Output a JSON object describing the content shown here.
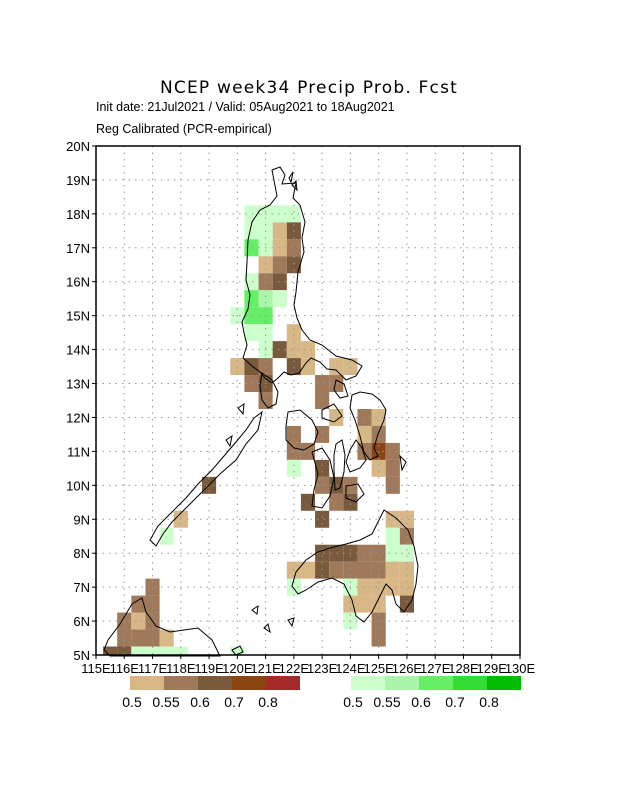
{
  "title": "NCEP week34 Precip Prob. Fcst",
  "subtitle1": "Init date: 21Jul2021 / Valid: 05Aug2021 to 18Aug2021",
  "subtitle2": "Reg Calibrated (PCR-empirical)",
  "lat_labels": [
    "20N",
    "19N",
    "18N",
    "17N",
    "16N",
    "15N",
    "14N",
    "13N",
    "12N",
    "11N",
    "10N",
    "9N",
    "8N",
    "7N",
    "6N",
    "5N"
  ],
  "lon_labels": [
    "115E",
    "116E",
    "117E",
    "118E",
    "119E",
    "120E",
    "121E",
    "122E",
    "123E",
    "124E",
    "125E",
    "126E",
    "127E",
    "128E",
    "129E",
    "130E"
  ],
  "colors": {
    "below": [
      "#d6b785",
      "#a0785a",
      "#7a5a3c",
      "#8b4513",
      "#a52a2a"
    ],
    "above": [
      "#ccffcc",
      "#aaf5aa",
      "#66ee66",
      "#33dd33",
      "#00bb00"
    ]
  },
  "legend": {
    "below_labels": [
      "0.5",
      "0.55",
      "0.6",
      "0.7",
      "0.8"
    ],
    "above_labels": [
      "0.5",
      "0.55",
      "0.6",
      "0.7",
      "0.8"
    ]
  },
  "chart_data": {
    "type": "heatmap",
    "grid_deg": 0.5,
    "lon_range": [
      115,
      130
    ],
    "lat_range": [
      5,
      20
    ],
    "grid": "dotted",
    "categories_note": "b = below-normal level index, a = above-normal level index",
    "cells": [
      {
        "lon": 120.5,
        "lat": 18.0,
        "a": 0
      },
      {
        "lon": 121.0,
        "lat": 18.0,
        "a": 0
      },
      {
        "lon": 121.5,
        "lat": 18.0,
        "a": 0
      },
      {
        "lon": 122.0,
        "lat": 18.0,
        "a": 0
      },
      {
        "lon": 120.5,
        "lat": 17.5,
        "a": 0
      },
      {
        "lon": 121.0,
        "lat": 17.5,
        "a": 0
      },
      {
        "lon": 121.5,
        "lat": 17.5,
        "b": 0
      },
      {
        "lon": 122.0,
        "lat": 17.5,
        "b": 2
      },
      {
        "lon": 120.5,
        "lat": 17.0,
        "a": 2
      },
      {
        "lon": 121.0,
        "lat": 17.0,
        "a": 0
      },
      {
        "lon": 121.5,
        "lat": 17.0,
        "b": 0
      },
      {
        "lon": 122.0,
        "lat": 17.0,
        "b": 1
      },
      {
        "lon": 121.0,
        "lat": 16.5,
        "b": 0
      },
      {
        "lon": 121.5,
        "lat": 16.5,
        "b": 1
      },
      {
        "lon": 122.0,
        "lat": 16.5,
        "b": 2
      },
      {
        "lon": 120.5,
        "lat": 16.0,
        "a": 0
      },
      {
        "lon": 121.0,
        "lat": 16.0,
        "b": 1
      },
      {
        "lon": 121.5,
        "lat": 16.0,
        "b": 2
      },
      {
        "lon": 120.5,
        "lat": 15.5,
        "a": 2
      },
      {
        "lon": 121.0,
        "lat": 15.5,
        "a": 1
      },
      {
        "lon": 121.5,
        "lat": 15.5,
        "a": 0
      },
      {
        "lon": 120.0,
        "lat": 15.0,
        "a": 0
      },
      {
        "lon": 120.5,
        "lat": 15.0,
        "a": 2
      },
      {
        "lon": 121.0,
        "lat": 15.0,
        "a": 2
      },
      {
        "lon": 120.5,
        "lat": 14.5,
        "a": 0
      },
      {
        "lon": 121.0,
        "lat": 14.5,
        "a": 0
      },
      {
        "lon": 122.0,
        "lat": 14.5,
        "b": 0
      },
      {
        "lon": 121.0,
        "lat": 14.0,
        "a": 0
      },
      {
        "lon": 121.5,
        "lat": 14.0,
        "b": 2
      },
      {
        "lon": 122.0,
        "lat": 14.0,
        "b": 0
      },
      {
        "lon": 122.5,
        "lat": 14.0,
        "b": 0
      },
      {
        "lon": 120.0,
        "lat": 13.5,
        "b": 0
      },
      {
        "lon": 120.5,
        "lat": 13.5,
        "b": 2
      },
      {
        "lon": 121.0,
        "lat": 13.5,
        "b": 1
      },
      {
        "lon": 122.0,
        "lat": 13.5,
        "b": 2
      },
      {
        "lon": 122.5,
        "lat": 13.5,
        "b": 0
      },
      {
        "lon": 123.5,
        "lat": 13.5,
        "b": 0
      },
      {
        "lon": 124.0,
        "lat": 13.5,
        "b": 0
      },
      {
        "lon": 120.5,
        "lat": 13.0,
        "b": 1
      },
      {
        "lon": 121.0,
        "lat": 13.0,
        "b": 2
      },
      {
        "lon": 123.0,
        "lat": 13.0,
        "b": 1
      },
      {
        "lon": 123.5,
        "lat": 13.0,
        "b": 1
      },
      {
        "lon": 121.0,
        "lat": 12.5,
        "b": 1
      },
      {
        "lon": 123.0,
        "lat": 12.5,
        "b": 1
      },
      {
        "lon": 123.5,
        "lat": 12.0,
        "b": 0
      },
      {
        "lon": 124.5,
        "lat": 12.0,
        "b": 1
      },
      {
        "lon": 125.0,
        "lat": 12.0,
        "b": 0
      },
      {
        "lon": 122.0,
        "lat": 11.5,
        "b": 1
      },
      {
        "lon": 123.0,
        "lat": 11.5,
        "b": 1
      },
      {
        "lon": 124.5,
        "lat": 11.5,
        "b": 0
      },
      {
        "lon": 125.0,
        "lat": 11.5,
        "b": 1
      },
      {
        "lon": 122.0,
        "lat": 11.0,
        "b": 1
      },
      {
        "lon": 122.5,
        "lat": 11.0,
        "b": 1
      },
      {
        "lon": 124.5,
        "lat": 11.0,
        "b": 1
      },
      {
        "lon": 125.0,
        "lat": 11.0,
        "b": 3
      },
      {
        "lon": 125.5,
        "lat": 11.0,
        "b": 1
      },
      {
        "lon": 122.0,
        "lat": 10.5,
        "a": 0
      },
      {
        "lon": 123.0,
        "lat": 10.5,
        "b": 2
      },
      {
        "lon": 125.0,
        "lat": 10.5,
        "b": 0
      },
      {
        "lon": 125.5,
        "lat": 10.5,
        "b": 1
      },
      {
        "lon": 123.0,
        "lat": 10.0,
        "b": 1
      },
      {
        "lon": 123.5,
        "lat": 10.0,
        "b": 2
      },
      {
        "lon": 124.0,
        "lat": 10.0,
        "b": 1
      },
      {
        "lon": 125.5,
        "lat": 10.0,
        "b": 1
      },
      {
        "lon": 122.5,
        "lat": 9.5,
        "b": 2
      },
      {
        "lon": 123.5,
        "lat": 9.5,
        "b": 1
      },
      {
        "lon": 124.0,
        "lat": 9.5,
        "b": 2
      },
      {
        "lon": 123.0,
        "lat": 9.0,
        "b": 2
      },
      {
        "lon": 125.5,
        "lat": 9.0,
        "b": 0
      },
      {
        "lon": 126.0,
        "lat": 9.0,
        "b": 0
      },
      {
        "lon": 125.5,
        "lat": 8.5,
        "a": 0
      },
      {
        "lon": 126.0,
        "lat": 8.5,
        "b": 1
      },
      {
        "lon": 123.0,
        "lat": 8.0,
        "b": 2
      },
      {
        "lon": 123.5,
        "lat": 8.0,
        "b": 2
      },
      {
        "lon": 124.0,
        "lat": 8.0,
        "b": 2
      },
      {
        "lon": 124.5,
        "lat": 8.0,
        "b": 1
      },
      {
        "lon": 125.0,
        "lat": 8.0,
        "b": 1
      },
      {
        "lon": 125.5,
        "lat": 8.0,
        "a": 0
      },
      {
        "lon": 126.0,
        "lat": 8.0,
        "a": 0
      },
      {
        "lon": 122.0,
        "lat": 7.5,
        "b": 0
      },
      {
        "lon": 122.5,
        "lat": 7.5,
        "b": 0
      },
      {
        "lon": 123.0,
        "lat": 7.5,
        "b": 2
      },
      {
        "lon": 123.5,
        "lat": 7.5,
        "b": 1
      },
      {
        "lon": 124.0,
        "lat": 7.5,
        "b": 1
      },
      {
        "lon": 124.5,
        "lat": 7.5,
        "b": 1
      },
      {
        "lon": 125.0,
        "lat": 7.5,
        "b": 1
      },
      {
        "lon": 125.5,
        "lat": 7.5,
        "b": 0
      },
      {
        "lon": 126.0,
        "lat": 7.5,
        "b": 0
      },
      {
        "lon": 122.0,
        "lat": 7.0,
        "a": 0
      },
      {
        "lon": 124.0,
        "lat": 7.0,
        "a": 0
      },
      {
        "lon": 124.5,
        "lat": 7.0,
        "b": 0
      },
      {
        "lon": 125.0,
        "lat": 7.0,
        "b": 0
      },
      {
        "lon": 125.5,
        "lat": 7.0,
        "b": 0
      },
      {
        "lon": 126.0,
        "lat": 7.0,
        "b": 0
      },
      {
        "lon": 124.0,
        "lat": 6.5,
        "b": 0
      },
      {
        "lon": 124.5,
        "lat": 6.5,
        "b": 0
      },
      {
        "lon": 125.0,
        "lat": 6.5,
        "b": 0
      },
      {
        "lon": 126.0,
        "lat": 6.5,
        "b": 2
      },
      {
        "lon": 124.0,
        "lat": 6.0,
        "a": 0
      },
      {
        "lon": 125.0,
        "lat": 6.0,
        "b": 1
      },
      {
        "lon": 125.0,
        "lat": 5.5,
        "b": 1
      },
      {
        "lon": 117.0,
        "lat": 7.0,
        "b": 1
      },
      {
        "lon": 116.5,
        "lat": 6.5,
        "b": 1
      },
      {
        "lon": 117.0,
        "lat": 6.5,
        "b": 1
      },
      {
        "lon": 116.0,
        "lat": 6.0,
        "b": 1
      },
      {
        "lon": 116.5,
        "lat": 6.0,
        "b": 0
      },
      {
        "lon": 117.0,
        "lat": 6.0,
        "b": 1
      },
      {
        "lon": 116.0,
        "lat": 5.5,
        "b": 1
      },
      {
        "lon": 116.5,
        "lat": 5.5,
        "b": 1
      },
      {
        "lon": 117.0,
        "lat": 5.5,
        "b": 1
      },
      {
        "lon": 117.5,
        "lat": 5.5,
        "b": 0
      },
      {
        "lon": 115.5,
        "lat": 5.0,
        "b": 2
      },
      {
        "lon": 116.0,
        "lat": 5.0,
        "b": 2
      },
      {
        "lon": 116.5,
        "lat": 5.0,
        "a": 0
      },
      {
        "lon": 117.0,
        "lat": 5.0,
        "a": 0
      },
      {
        "lon": 117.5,
        "lat": 5.0,
        "a": 0
      },
      {
        "lon": 118.0,
        "lat": 5.0,
        "a": 0
      },
      {
        "lon": 119.0,
        "lat": 10.0,
        "b": 2
      },
      {
        "lon": 118.0,
        "lat": 9.0,
        "b": 0
      },
      {
        "lon": 117.5,
        "lat": 8.5,
        "a": 0
      },
      {
        "lon": 120.0,
        "lat": 5.0,
        "a": 0
      }
    ]
  }
}
